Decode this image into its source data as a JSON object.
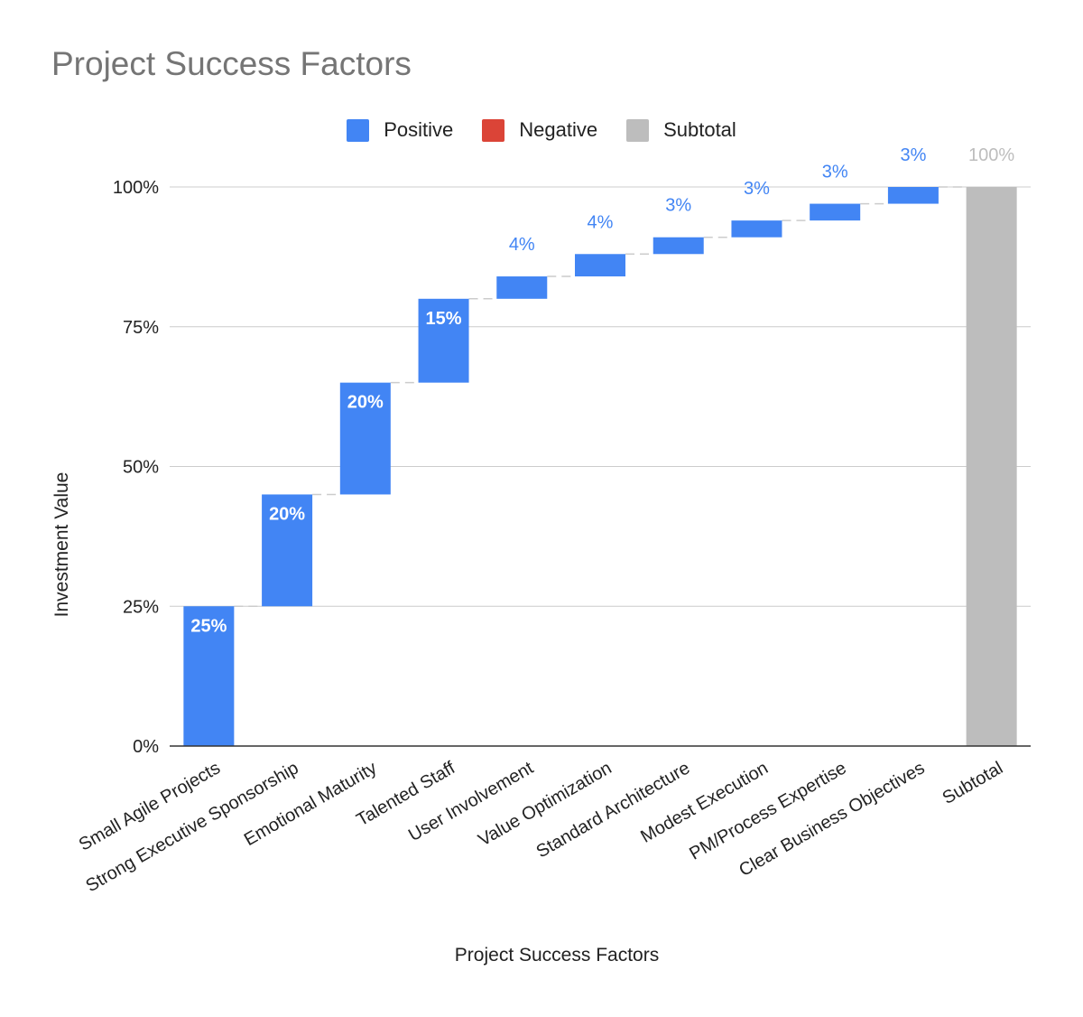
{
  "chart_data": {
    "type": "bar",
    "subtype": "waterfall",
    "title": "Project Success Factors",
    "xlabel": "Project Success Factors",
    "ylabel": "Investment Value",
    "ylim": [
      0,
      100
    ],
    "yticks": [
      "0%",
      "25%",
      "50%",
      "75%",
      "100%"
    ],
    "grid": true,
    "legend_position": "top",
    "legend": [
      {
        "label": "Positive",
        "color": "#4285f4"
      },
      {
        "label": "Negative",
        "color": "#db4437"
      },
      {
        "label": "Subtotal",
        "color": "#bdbdbd"
      }
    ],
    "categories": [
      "Small Agile Projects",
      "Strong Executive Sponsorship",
      "Emotional Maturity",
      "Talented Staff",
      "User Involvement",
      "Value Optimization",
      "Standard Architecture",
      "Modest Execution",
      "PM/Process Expertise",
      "Clear Business Objectives",
      "Subtotal"
    ],
    "values": [
      25,
      20,
      20,
      15,
      4,
      4,
      3,
      3,
      3,
      3,
      100
    ],
    "kinds": [
      "positive",
      "positive",
      "positive",
      "positive",
      "positive",
      "positive",
      "positive",
      "positive",
      "positive",
      "positive",
      "subtotal"
    ],
    "data_labels": [
      "25%",
      "20%",
      "20%",
      "15%",
      "4%",
      "4%",
      "3%",
      "3%",
      "3%",
      "3%",
      "100%"
    ]
  }
}
